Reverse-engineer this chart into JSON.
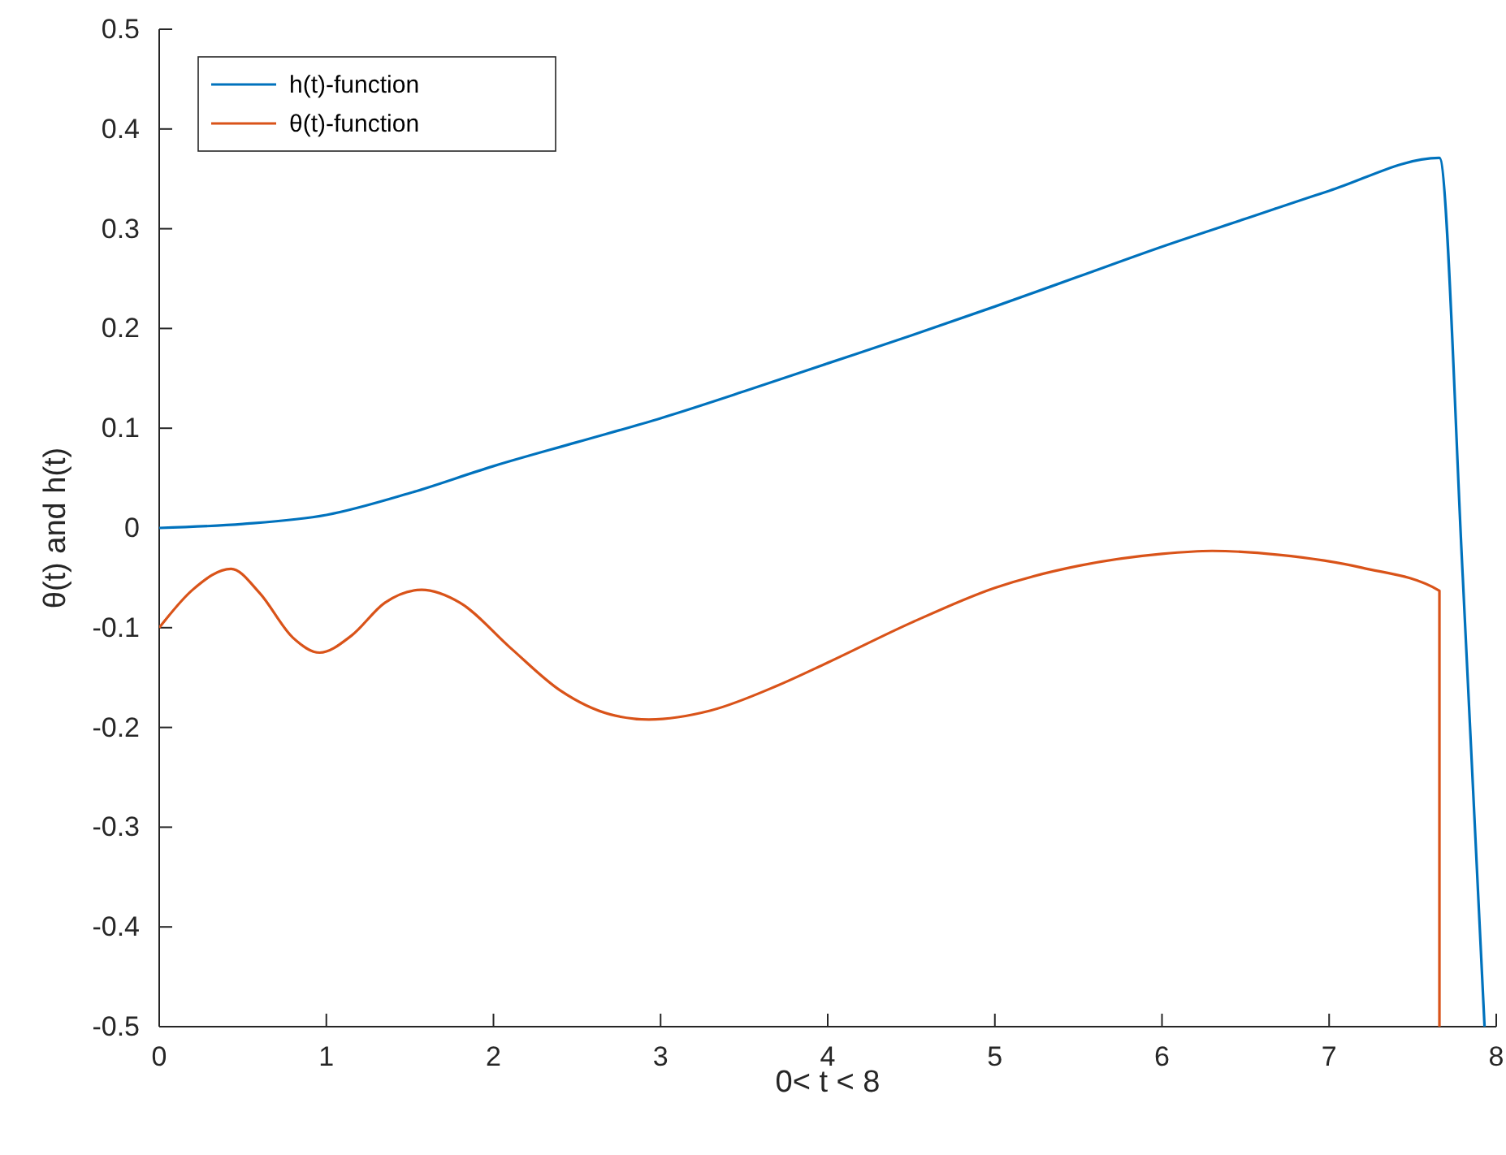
{
  "chart_data": {
    "type": "line",
    "xlabel": "0< t < 8",
    "ylabel": "θ(t) and h(t)",
    "xlim": [
      0,
      8
    ],
    "ylim": [
      -0.5,
      0.5
    ],
    "xticks": [
      0,
      1,
      2,
      3,
      4,
      5,
      6,
      7,
      8
    ],
    "yticks": [
      -0.5,
      -0.4,
      -0.3,
      -0.2,
      -0.1,
      0,
      0.1,
      0.2,
      0.3,
      0.4,
      0.5
    ],
    "legend": "top left",
    "grid": false,
    "series": [
      {
        "name": "h(t)-function",
        "color": "#0072bd",
        "x": [
          0,
          0.5,
          1,
          1.5,
          2,
          2.5,
          3,
          3.5,
          4,
          4.5,
          5,
          5.5,
          6,
          6.5,
          7,
          7.66,
          7.8,
          7.93
        ],
        "values": [
          0,
          0.004,
          0.013,
          0.035,
          0.062,
          0.086,
          0.11,
          0.137,
          0.165,
          0.193,
          0.222,
          0.252,
          0.282,
          0.31,
          0.338,
          0.371,
          -0.05,
          -0.5
        ]
      },
      {
        "name": "θ(t)-function",
        "color": "#d95319",
        "x": [
          0,
          0.2,
          0.43,
          0.6,
          0.8,
          0.96,
          1.15,
          1.35,
          1.57,
          1.8,
          2.1,
          2.4,
          2.7,
          2.93,
          3.3,
          3.7,
          4,
          4.5,
          5,
          5.5,
          6,
          6.3,
          6.7,
          7.2,
          7.66,
          7.66
        ],
        "values": [
          -0.1,
          -0.062,
          -0.041,
          -0.065,
          -0.11,
          -0.125,
          -0.108,
          -0.075,
          -0.062,
          -0.075,
          -0.12,
          -0.163,
          -0.187,
          -0.192,
          -0.183,
          -0.158,
          -0.135,
          -0.095,
          -0.06,
          -0.038,
          -0.026,
          -0.023,
          -0.027,
          -0.04,
          -0.063,
          -0.5
        ]
      }
    ]
  }
}
